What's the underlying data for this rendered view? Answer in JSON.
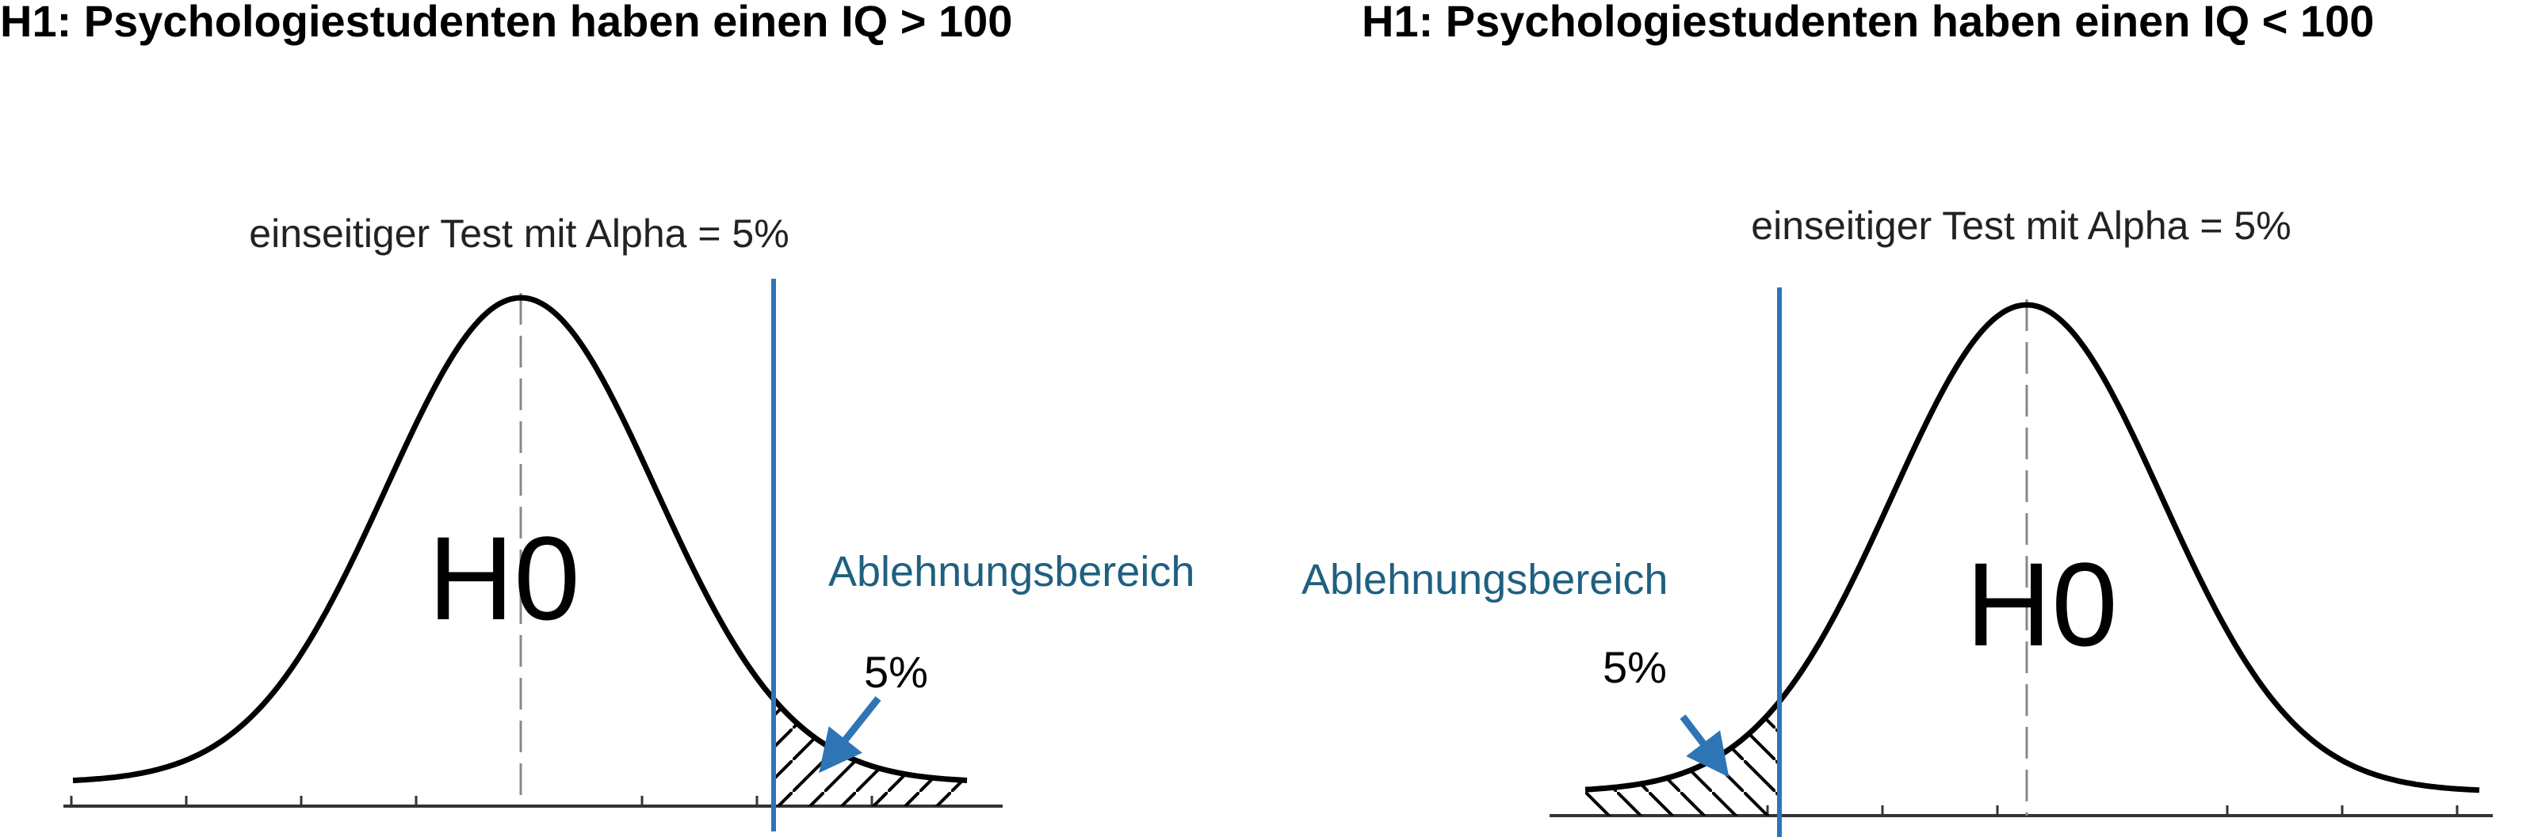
{
  "panels": [
    {
      "title": "H1: Psychologiestudenten haben einen IQ > 100",
      "test_label": "einseitiger Test mit Alpha = 5%",
      "dist_label": "H0",
      "region_label": "Ablehnungsbereich",
      "percent_label": "5%",
      "tail": "right"
    },
    {
      "title": "H1: Psychologiestudenten haben einen IQ < 100",
      "test_label": "einseitiger Test mit Alpha = 5%",
      "dist_label": "H0",
      "region_label": "Ablehnungsbereich",
      "percent_label": "5%",
      "tail": "left"
    }
  ],
  "colors": {
    "curve": "#000000",
    "critical_line": "#2e75b6",
    "region_text": "#1f6080",
    "arrow": "#2e75b6",
    "axis": "#333333",
    "center_line": "#888888"
  }
}
